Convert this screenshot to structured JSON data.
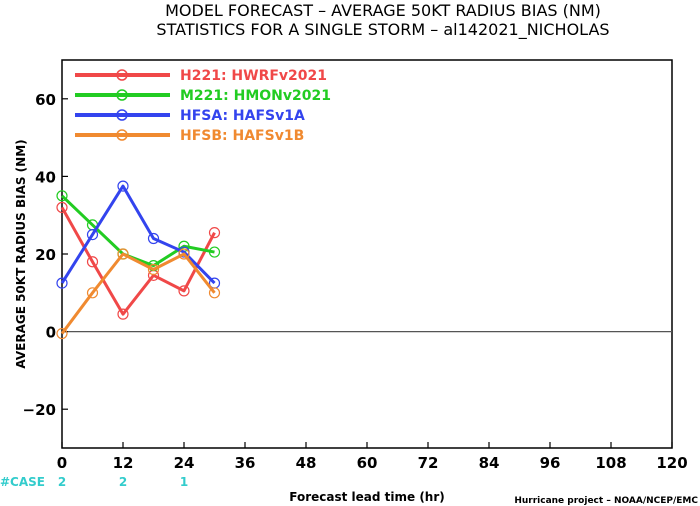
{
  "title_line1": "MODEL FORECAST – AVERAGE 50KT RADIUS BIAS (NM)",
  "title_line2": "STATISTICS FOR A SINGLE STORM – al142021_NICHOLAS",
  "credit": "Hurricane project – NOAA/NCEP/EMC",
  "case_label": "#CASE",
  "case_color": "#33cccc",
  "cases": [
    {
      "x": 0,
      "label": "2"
    },
    {
      "x": 12,
      "label": "2"
    },
    {
      "x": 24,
      "label": "1"
    }
  ],
  "chart_data": {
    "type": "line",
    "xlabel": "Forecast lead time (hr)",
    "ylabel": "AVERAGE 50KT RADIUS BIAS (NM)",
    "xlim": [
      0,
      120
    ],
    "ylim": [
      -30,
      70
    ],
    "xticks": [
      0,
      12,
      24,
      36,
      48,
      60,
      72,
      84,
      96,
      108,
      120
    ],
    "yticks": [
      -20,
      0,
      20,
      40,
      60
    ],
    "grid": false,
    "zero_line": true,
    "legend_position": "top-left",
    "series": [
      {
        "name": "H221: HWRFv2021",
        "color": "#f04848",
        "x": [
          0,
          6,
          12,
          18,
          24,
          30
        ],
        "y": [
          32,
          18,
          4.5,
          14.5,
          10.5,
          25.5
        ]
      },
      {
        "name": "M221: HMONv2021",
        "color": "#22cc22",
        "x": [
          0,
          6,
          12,
          18,
          24,
          30
        ],
        "y": [
          35,
          27.5,
          20,
          17,
          22,
          20.5
        ]
      },
      {
        "name": "HFSA: HAFSv1A",
        "color": "#3344ee",
        "x": [
          0,
          6,
          12,
          18,
          24,
          30
        ],
        "y": [
          12.5,
          25,
          37.5,
          24,
          20.5,
          12.5
        ]
      },
      {
        "name": "HFSB: HAFSv1B",
        "color": "#f08a30",
        "x": [
          0,
          6,
          12,
          18,
          24,
          30
        ],
        "y": [
          -0.5,
          10,
          20,
          16,
          20,
          10
        ]
      }
    ]
  }
}
